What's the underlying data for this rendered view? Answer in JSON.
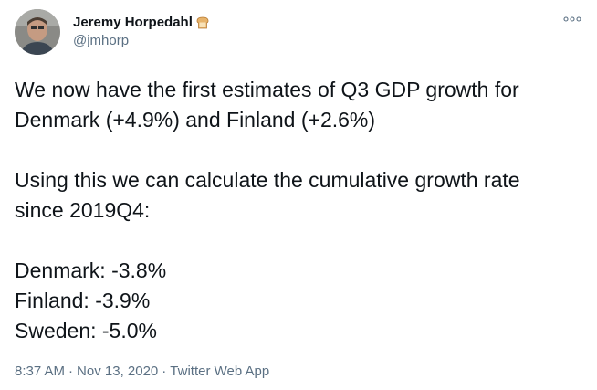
{
  "author": {
    "display_name": "Jeremy Horpedahl",
    "name_emoji_icon": "bread-icon",
    "handle": "@jmhorp",
    "avatar_icon": "profile-photo"
  },
  "menu": {
    "more_icon": "more-options-icon"
  },
  "tweet": {
    "paragraph_1": "We now have the first estimates of Q3 GDP growth for\nDenmark (+4.9%) and Finland (+2.6%)",
    "paragraph_2": "Using this we can calculate the cumulative growth rate\nsince 2019Q4:",
    "paragraph_3": "Denmark: -3.8%\nFinland: -3.9%\nSweden: -5.0%"
  },
  "meta": {
    "time": "8:37 AM",
    "separator": "·",
    "date": "Nov 13, 2020",
    "source": "Twitter Web App"
  },
  "colors": {
    "text": "#0f1419",
    "secondary": "#5b7083",
    "background": "#ffffff"
  }
}
